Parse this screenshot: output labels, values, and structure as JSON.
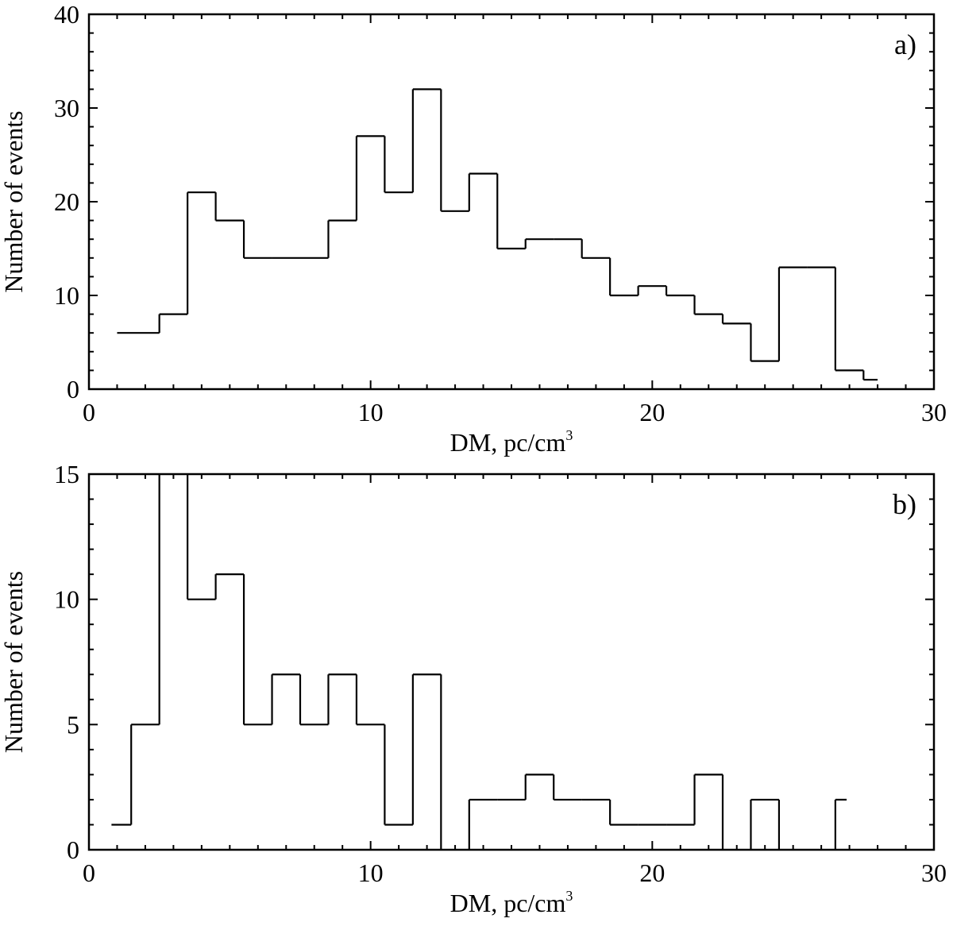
{
  "chart_data": [
    {
      "type": "histogram",
      "panel_label": "a)",
      "xlabel": "DM, pc/cm",
      "xlabel_sup": "3",
      "ylabel": "Number of events",
      "xlim": [
        0,
        30
      ],
      "ylim": [
        0,
        40
      ],
      "xticks": [
        "0",
        "10",
        "20",
        "30"
      ],
      "yticks": [
        "0",
        "10",
        "20",
        "30",
        "40"
      ],
      "grid": false,
      "bin_edges": [
        1.0,
        2.5,
        3.5,
        4.5,
        5.5,
        6.5,
        7.5,
        8.5,
        9.5,
        10.5,
        11.5,
        12.5,
        13.5,
        14.5,
        15.5,
        16.5,
        17.5,
        18.5,
        19.5,
        20.5,
        21.5,
        22.5,
        23.5,
        24.5,
        25.5,
        26.5,
        27.5,
        28.0
      ],
      "counts": [
        6,
        8,
        21,
        18,
        14,
        14,
        14,
        18,
        27,
        21,
        32,
        19,
        23,
        15,
        16,
        16,
        14,
        10,
        11,
        10,
        8,
        7,
        3,
        13,
        13,
        2,
        1
      ]
    },
    {
      "type": "histogram",
      "panel_label": "b)",
      "xlabel": "DM, pc/cm",
      "xlabel_sup": "3",
      "ylabel": "Number of events",
      "xlim": [
        0,
        30
      ],
      "ylim": [
        0,
        15
      ],
      "xticks": [
        "0",
        "10",
        "20",
        "30"
      ],
      "yticks": [
        "0",
        "5",
        "10",
        "15"
      ],
      "grid": false,
      "bin_edges": [
        0.8,
        1.5,
        2.5,
        3.5,
        4.5,
        5.5,
        6.5,
        7.5,
        8.5,
        9.5,
        10.5,
        11.5,
        12.5,
        13.5,
        14.5,
        15.5,
        16.5,
        17.5,
        18.5,
        19.5,
        20.5,
        21.5,
        22.5,
        23.5,
        24.5,
        25.5,
        26.5,
        26.9
      ],
      "counts": [
        1,
        5,
        null,
        10,
        11,
        5,
        7,
        5,
        7,
        5,
        1,
        7,
        0,
        2,
        2,
        3,
        2,
        2,
        1,
        1,
        1,
        3,
        0,
        2,
        0,
        0,
        2
      ]
    }
  ]
}
